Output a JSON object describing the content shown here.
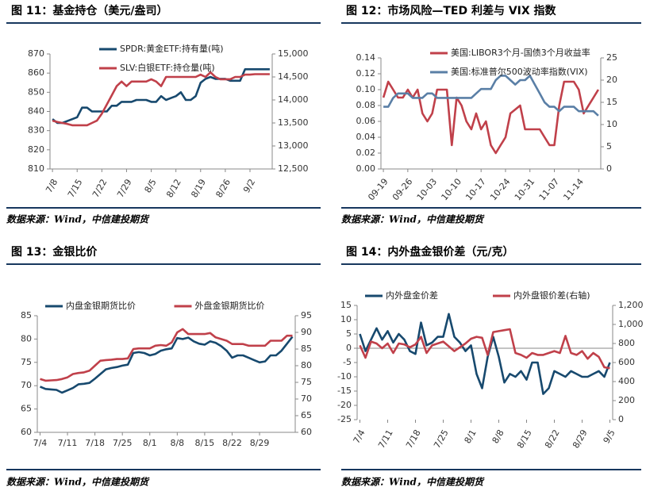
{
  "chart_data": [
    {
      "type": "line",
      "title": "图 11：基金持仓（美元/盎司）",
      "source": "数据来源：Wind，中信建投期货",
      "legend": "upper left",
      "categories": [
        "7/8",
        null,
        null,
        null,
        null,
        "7/15",
        null,
        null,
        null,
        null,
        "7/22",
        null,
        null,
        null,
        null,
        "7/29",
        null,
        null,
        null,
        null,
        "8/5",
        null,
        null,
        null,
        null,
        "8/12",
        null,
        null,
        null,
        null,
        "8/19",
        null,
        null,
        null,
        null,
        "8/26",
        null,
        null,
        null,
        null,
        "9/2",
        null,
        null,
        null,
        null
      ],
      "ylim": [
        810,
        870
      ],
      "yticks": [
        810,
        820,
        830,
        840,
        850,
        860,
        870
      ],
      "y2lim": [
        12500,
        15000
      ],
      "y2ticks": [
        {
          "value": 12500,
          "label": "12,500"
        },
        {
          "value": 13000,
          "label": "13,000"
        },
        {
          "value": 13500,
          "label": "13,500"
        },
        {
          "value": 14000,
          "label": "14,000"
        },
        {
          "value": 14500,
          "label": "14,500"
        },
        {
          "value": 15000,
          "label": "15,000"
        }
      ],
      "series": [
        {
          "name": "SPDR:黄金ETF:持有量(吨)",
          "color": "#17496e",
          "values": [
            836,
            834,
            834,
            835,
            836,
            837,
            842,
            842,
            840,
            840,
            840,
            840,
            843,
            843,
            845,
            845,
            845,
            846,
            846,
            846,
            845,
            845,
            848,
            846,
            847,
            848,
            850,
            846,
            846,
            848,
            855,
            857,
            858,
            857,
            857,
            857,
            856,
            856,
            856,
            862,
            862,
            862,
            862,
            862,
            862
          ]
        },
        {
          "name": "SLV:白银ETF:持仓量(吨)",
          "color": "#c0404a",
          "axis": "y2",
          "values": [
            13550,
            13520,
            13500,
            13480,
            13450,
            13450,
            13450,
            13450,
            13500,
            13550,
            13700,
            13900,
            14100,
            14300,
            14400,
            14300,
            14400,
            14400,
            14400,
            14400,
            14450,
            14400,
            14300,
            14500,
            14500,
            14500,
            14500,
            14500,
            14500,
            14500,
            14550,
            14500,
            14600,
            14500,
            14450,
            14450,
            14450,
            14500,
            14500,
            14550,
            14550,
            14560,
            14560,
            14560,
            14560
          ]
        }
      ]
    },
    {
      "type": "line",
      "title": "图 12：市场风险—TED 利差与 VIX 指数",
      "source": "数据来源：Wind，中信建投期货",
      "legend": "upper left",
      "categories": [
        "09-19",
        null,
        null,
        null,
        null,
        "09-26",
        null,
        null,
        null,
        null,
        "10-03",
        null,
        null,
        null,
        null,
        "10-10",
        null,
        null,
        null,
        null,
        "10-17",
        null,
        null,
        null,
        null,
        "10-24",
        null,
        null,
        null,
        null,
        "10-31",
        null,
        null,
        null,
        null,
        "11-07",
        null,
        null,
        null,
        null,
        "11-14",
        null,
        null,
        null,
        null
      ],
      "ylim": [
        0,
        0.14
      ],
      "yticks": [
        {
          "value": 0,
          "label": "0.00"
        },
        {
          "value": 0.02,
          "label": "0.02"
        },
        {
          "value": 0.04,
          "label": "0.04"
        },
        {
          "value": 0.06,
          "label": "0.06"
        },
        {
          "value": 0.08,
          "label": "0.08"
        },
        {
          "value": 0.1,
          "label": "0.10"
        },
        {
          "value": 0.12,
          "label": "0.12"
        },
        {
          "value": 0.14,
          "label": "0.14"
        }
      ],
      "y2lim": [
        0,
        25
      ],
      "y2ticks": [
        0,
        5,
        10,
        15,
        20,
        25
      ],
      "series": [
        {
          "name": "美国:LIBOR3个月-国债3个月收益率",
          "color": "#c0404a",
          "values": [
            0.09,
            0.11,
            0.1,
            0.09,
            0.09,
            0.1,
            0.09,
            0.1,
            0.07,
            0.06,
            0.07,
            0.1,
            0.1,
            0.1,
            0.03,
            0.09,
            0.08,
            0.06,
            0.05,
            0.07,
            0.05,
            0.06,
            0.03,
            0.02,
            0.03,
            0.04,
            0.07,
            0.075,
            0.08,
            0.05,
            0.05,
            0.05,
            0.05,
            0.04,
            0.03,
            0.03,
            0.08,
            0.11,
            0.11,
            0.11,
            0.1,
            0.07,
            0.08,
            0.09,
            0.1
          ]
        },
        {
          "name": "美国:标准普尔500波动率指数(VIX)",
          "color": "#5a7fa6",
          "axis": "y2",
          "values": [
            14,
            14,
            16,
            17,
            17,
            17,
            16,
            16,
            16,
            17,
            17,
            16,
            16,
            16,
            16,
            16,
            16,
            16,
            16,
            17,
            18,
            18,
            18,
            20,
            21,
            21,
            20,
            19,
            20,
            20,
            21,
            19,
            17,
            15,
            14,
            14,
            13,
            14,
            14,
            14,
            13,
            13,
            13,
            13,
            12
          ]
        }
      ]
    },
    {
      "type": "line",
      "title": "图 13：金银比价",
      "source": "数据来源：Wind，中信建投期货",
      "legend": "top",
      "categories": [
        "7/4",
        null,
        null,
        null,
        null,
        "7/11",
        null,
        null,
        null,
        null,
        "7/18",
        null,
        null,
        null,
        null,
        "7/25",
        null,
        null,
        null,
        null,
        "8/1",
        null,
        null,
        null,
        null,
        "8/8",
        null,
        null,
        null,
        null,
        "8/15",
        null,
        null,
        null,
        null,
        "8/22",
        null,
        null,
        null,
        null,
        "8/29",
        null,
        null,
        null,
        null,
        null,
        null
      ],
      "ylim": [
        60,
        85
      ],
      "yticks": [
        60,
        65,
        70,
        75,
        80,
        85
      ],
      "y2lim": [
        60,
        95
      ],
      "y2ticks": [
        60,
        65,
        70,
        75,
        80,
        85,
        90,
        95
      ],
      "series": [
        {
          "name": "内盘金银期货比价",
          "color": "#17496e",
          "values": [
            69.8,
            69.3,
            69.2,
            69.1,
            68.5,
            69,
            69.5,
            70.3,
            70.4,
            70.6,
            71.5,
            72.5,
            73.5,
            73.8,
            74,
            74.3,
            74.5,
            77,
            77.2,
            77,
            76.5,
            76.8,
            77.5,
            77.8,
            78,
            80.2,
            80,
            80.3,
            79.5,
            79,
            78.8,
            79.5,
            79.2,
            78.5,
            77.5,
            76,
            76.5,
            76.5,
            76,
            75.5,
            75,
            75.2,
            76.5,
            76.5,
            77.5,
            79,
            80.5
          ]
        },
        {
          "name": "外盘金银期货比价",
          "color": "#c0404a",
          "axis": "y2",
          "values": [
            76,
            75.5,
            75.6,
            75.7,
            76,
            76.5,
            77.5,
            77.8,
            78,
            78.5,
            80,
            81.5,
            81.7,
            81.8,
            82,
            82,
            82.2,
            85,
            85.2,
            85.2,
            85.2,
            86,
            86.2,
            86,
            87,
            90,
            91,
            89.5,
            89.5,
            89.5,
            89.5,
            89.8,
            88.5,
            88,
            87.5,
            86.5,
            86.5,
            86.5,
            86,
            86,
            86,
            86,
            87.5,
            87.5,
            87.5,
            89,
            89
          ]
        }
      ]
    },
    {
      "type": "line",
      "title": "图 14：内外盘金银价差（元/克）",
      "source": "数据来源：Wind，中信建投期货",
      "legend": "top",
      "categories": [
        "7/4",
        null,
        null,
        null,
        null,
        "7/11",
        null,
        null,
        null,
        null,
        "7/18",
        null,
        null,
        null,
        null,
        "7/25",
        null,
        null,
        null,
        null,
        "8/1",
        null,
        null,
        null,
        null,
        "8/8",
        null,
        null,
        null,
        null,
        "8/15",
        null,
        null,
        null,
        null,
        "8/22",
        null,
        null,
        null,
        null,
        "8/29",
        null,
        null,
        null,
        null,
        "9/5"
      ],
      "ylim": [
        -25,
        15
      ],
      "yticks": [
        -25,
        -20,
        -15,
        -10,
        -5,
        0,
        5,
        10,
        15
      ],
      "y2lim": [
        0,
        1200
      ],
      "y2ticks": [
        0,
        200,
        400,
        600,
        800,
        {
          "value": 1000,
          "label": "1,000"
        },
        {
          "value": 1200,
          "label": "1,200"
        }
      ],
      "series": [
        {
          "name": "内外盘金价差",
          "color": "#17496e",
          "values": [
            5,
            -1,
            3,
            7,
            3,
            6,
            2,
            5,
            3,
            -1,
            -2,
            9,
            1,
            2,
            4,
            4,
            12,
            4,
            2,
            -1,
            1,
            -9,
            -14,
            -3,
            4,
            -3,
            -12,
            -9,
            -10,
            -8,
            -11,
            -5,
            -5,
            -16,
            -14,
            -8,
            -9,
            -10,
            -8,
            -9,
            -10,
            -10,
            -9,
            -8,
            -10,
            -5
          ]
        },
        {
          "name": "内外盘银价差(右轴)",
          "color": "#c0404a",
          "axis": "y2",
          "values": [
            780,
            650,
            820,
            800,
            750,
            800,
            700,
            800,
            790,
            760,
            790,
            870,
            700,
            780,
            800,
            820,
            770,
            720,
            760,
            800,
            850,
            870,
            860,
            680,
            920,
            930,
            940,
            950,
            700,
            680,
            650,
            700,
            680,
            680,
            700,
            720,
            700,
            880,
            700,
            680,
            720,
            640,
            700,
            660,
            550,
            540
          ]
        }
      ]
    }
  ]
}
